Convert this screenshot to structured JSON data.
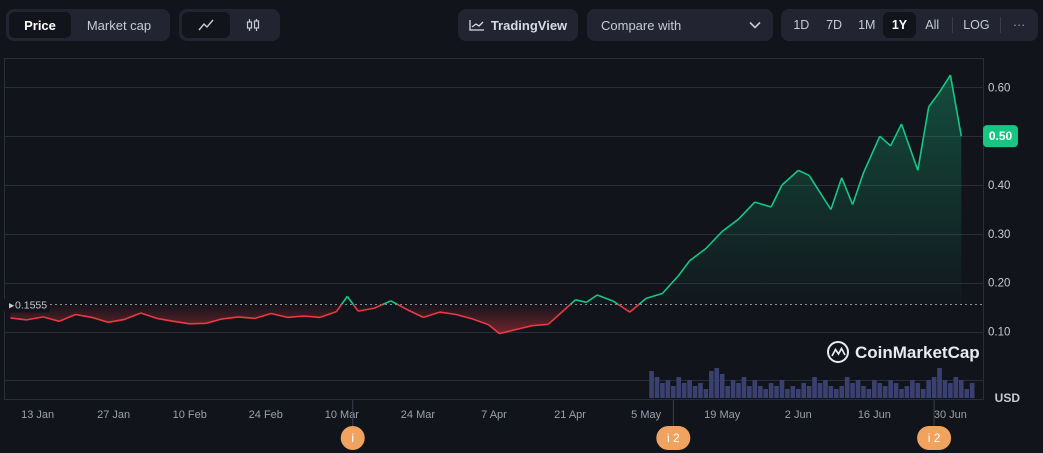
{
  "toolbar": {
    "tabs": [
      {
        "label": "Price",
        "active": true
      },
      {
        "label": "Market cap",
        "active": false
      }
    ],
    "chart_types": [
      {
        "icon": "line-chart-icon",
        "active": true
      },
      {
        "icon": "candlestick-icon",
        "active": false
      }
    ],
    "tradingview_label": "TradingView",
    "compare_label": "Compare with",
    "ranges": [
      {
        "label": "1D",
        "active": false
      },
      {
        "label": "7D",
        "active": false
      },
      {
        "label": "1M",
        "active": false
      },
      {
        "label": "1Y",
        "active": true
      },
      {
        "label": "All",
        "active": false
      }
    ],
    "log_label": "LOG",
    "more_label": "···"
  },
  "colors": {
    "up": "#16c784",
    "down": "#ea3943",
    "background": "#12141b",
    "grid": "#2a2e39",
    "volume": "#3a4170",
    "event": "#f0a35e"
  },
  "watermark": "CoinMarketCap",
  "chart_data": {
    "type": "line",
    "baseline": {
      "value": 0.1555,
      "label": "0.1555"
    },
    "current_price": {
      "value": 0.5,
      "label": "0.50"
    },
    "ylim": [
      -0.04,
      0.66
    ],
    "y_ticks": [
      0.1,
      0.2,
      0.3,
      0.4,
      0.5,
      0.6
    ],
    "y_tick_labels": [
      "0.10",
      "0.20",
      "0.30",
      "0.40",
      "",
      "0.60"
    ],
    "y_unit_label": "USD",
    "x_ticks": [
      "13 Jan",
      "27 Jan",
      "10 Feb",
      "24 Feb",
      "10 Mar",
      "24 Mar",
      "7 Apr",
      "21 Apr",
      "5 May",
      "19 May",
      "2 Jun",
      "16 Jun",
      "30 Jun"
    ],
    "x_tick_dates": [
      "2025-01-13",
      "2025-01-27",
      "2025-02-10",
      "2025-02-24",
      "2025-03-10",
      "2025-03-24",
      "2025-04-07",
      "2025-04-21",
      "2025-05-05",
      "2025-05-19",
      "2025-06-02",
      "2025-06-16",
      "2025-06-30"
    ],
    "xlim": [
      "2025-01-07",
      "2025-07-06"
    ],
    "series": [
      {
        "points": [
          [
            "2025-01-08",
            0.128
          ],
          [
            "2025-01-11",
            0.124
          ],
          [
            "2025-01-14",
            0.13
          ],
          [
            "2025-01-17",
            0.121
          ],
          [
            "2025-01-20",
            0.135
          ],
          [
            "2025-01-23",
            0.129
          ],
          [
            "2025-01-26",
            0.119
          ],
          [
            "2025-01-29",
            0.125
          ],
          [
            "2025-02-01",
            0.138
          ],
          [
            "2025-02-04",
            0.127
          ],
          [
            "2025-02-07",
            0.121
          ],
          [
            "2025-02-10",
            0.116
          ],
          [
            "2025-02-13",
            0.117
          ],
          [
            "2025-02-16",
            0.126
          ],
          [
            "2025-02-19",
            0.13
          ],
          [
            "2025-02-22",
            0.127
          ],
          [
            "2025-02-25",
            0.137
          ],
          [
            "2025-02-28",
            0.129
          ],
          [
            "2025-03-03",
            0.132
          ],
          [
            "2025-03-06",
            0.129
          ],
          [
            "2025-03-09",
            0.141
          ],
          [
            "2025-03-11",
            0.172
          ],
          [
            "2025-03-13",
            0.142
          ],
          [
            "2025-03-16",
            0.148
          ],
          [
            "2025-03-19",
            0.163
          ],
          [
            "2025-03-22",
            0.145
          ],
          [
            "2025-03-25",
            0.129
          ],
          [
            "2025-03-28",
            0.14
          ],
          [
            "2025-03-31",
            0.135
          ],
          [
            "2025-04-03",
            0.126
          ],
          [
            "2025-04-06",
            0.114
          ],
          [
            "2025-04-08",
            0.096
          ],
          [
            "2025-04-11",
            0.104
          ],
          [
            "2025-04-14",
            0.112
          ],
          [
            "2025-04-17",
            0.115
          ],
          [
            "2025-04-20",
            0.145
          ],
          [
            "2025-04-22",
            0.165
          ],
          [
            "2025-04-24",
            0.16
          ],
          [
            "2025-04-26",
            0.175
          ],
          [
            "2025-04-29",
            0.162
          ],
          [
            "2025-05-02",
            0.14
          ],
          [
            "2025-05-05",
            0.168
          ],
          [
            "2025-05-08",
            0.178
          ],
          [
            "2025-05-11",
            0.215
          ],
          [
            "2025-05-13",
            0.245
          ],
          [
            "2025-05-16",
            0.27
          ],
          [
            "2025-05-19",
            0.305
          ],
          [
            "2025-05-22",
            0.33
          ],
          [
            "2025-05-25",
            0.365
          ],
          [
            "2025-05-28",
            0.355
          ],
          [
            "2025-05-30",
            0.4
          ],
          [
            "2025-06-02",
            0.43
          ],
          [
            "2025-06-04",
            0.42
          ],
          [
            "2025-06-06",
            0.385
          ],
          [
            "2025-06-08",
            0.35
          ],
          [
            "2025-06-10",
            0.415
          ],
          [
            "2025-06-12",
            0.36
          ],
          [
            "2025-06-14",
            0.425
          ],
          [
            "2025-06-17",
            0.5
          ],
          [
            "2025-06-19",
            0.48
          ],
          [
            "2025-06-21",
            0.525
          ],
          [
            "2025-06-24",
            0.43
          ],
          [
            "2025-06-26",
            0.56
          ],
          [
            "2025-06-28",
            0.59
          ],
          [
            "2025-06-30",
            0.625
          ],
          [
            "2025-07-02",
            0.5
          ]
        ]
      }
    ],
    "volume": [
      [
        "2025-05-06",
        0.9
      ],
      [
        "2025-05-07",
        0.7
      ],
      [
        "2025-05-08",
        0.5
      ],
      [
        "2025-05-09",
        0.6
      ],
      [
        "2025-05-10",
        0.4
      ],
      [
        "2025-05-11",
        0.7
      ],
      [
        "2025-05-12",
        0.5
      ],
      [
        "2025-05-13",
        0.6
      ],
      [
        "2025-05-14",
        0.4
      ],
      [
        "2025-05-15",
        0.5
      ],
      [
        "2025-05-16",
        0.3
      ],
      [
        "2025-05-17",
        0.9
      ],
      [
        "2025-05-18",
        1.0
      ],
      [
        "2025-05-19",
        0.8
      ],
      [
        "2025-05-20",
        0.4
      ],
      [
        "2025-05-21",
        0.6
      ],
      [
        "2025-05-22",
        0.5
      ],
      [
        "2025-05-23",
        0.7
      ],
      [
        "2025-05-24",
        0.4
      ],
      [
        "2025-05-25",
        0.6
      ],
      [
        "2025-05-26",
        0.4
      ],
      [
        "2025-05-27",
        0.3
      ],
      [
        "2025-05-28",
        0.5
      ],
      [
        "2025-05-29",
        0.4
      ],
      [
        "2025-05-30",
        0.6
      ],
      [
        "2025-05-31",
        0.3
      ],
      [
        "2025-06-01",
        0.4
      ],
      [
        "2025-06-02",
        0.3
      ],
      [
        "2025-06-03",
        0.5
      ],
      [
        "2025-06-04",
        0.4
      ],
      [
        "2025-06-05",
        0.7
      ],
      [
        "2025-06-06",
        0.5
      ],
      [
        "2025-06-07",
        0.6
      ],
      [
        "2025-06-08",
        0.4
      ],
      [
        "2025-06-09",
        0.3
      ],
      [
        "2025-06-10",
        0.4
      ],
      [
        "2025-06-11",
        0.7
      ],
      [
        "2025-06-12",
        0.5
      ],
      [
        "2025-06-13",
        0.6
      ],
      [
        "2025-06-14",
        0.4
      ],
      [
        "2025-06-15",
        0.3
      ],
      [
        "2025-06-16",
        0.6
      ],
      [
        "2025-06-17",
        0.5
      ],
      [
        "2025-06-18",
        0.4
      ],
      [
        "2025-06-19",
        0.6
      ],
      [
        "2025-06-20",
        0.5
      ],
      [
        "2025-06-21",
        0.3
      ],
      [
        "2025-06-22",
        0.4
      ],
      [
        "2025-06-23",
        0.6
      ],
      [
        "2025-06-24",
        0.5
      ],
      [
        "2025-06-25",
        0.3
      ],
      [
        "2025-06-26",
        0.6
      ],
      [
        "2025-06-27",
        0.7
      ],
      [
        "2025-06-28",
        1.0
      ],
      [
        "2025-06-29",
        0.6
      ],
      [
        "2025-06-30",
        0.5
      ],
      [
        "2025-07-01",
        0.7
      ],
      [
        "2025-07-02",
        0.6
      ],
      [
        "2025-07-03",
        0.3
      ],
      [
        "2025-07-04",
        0.5
      ]
    ],
    "events": [
      {
        "date": "2025-03-12",
        "label": "i"
      },
      {
        "date": "2025-05-10",
        "label": "i 2"
      },
      {
        "date": "2025-06-27",
        "label": "i 2"
      }
    ]
  }
}
